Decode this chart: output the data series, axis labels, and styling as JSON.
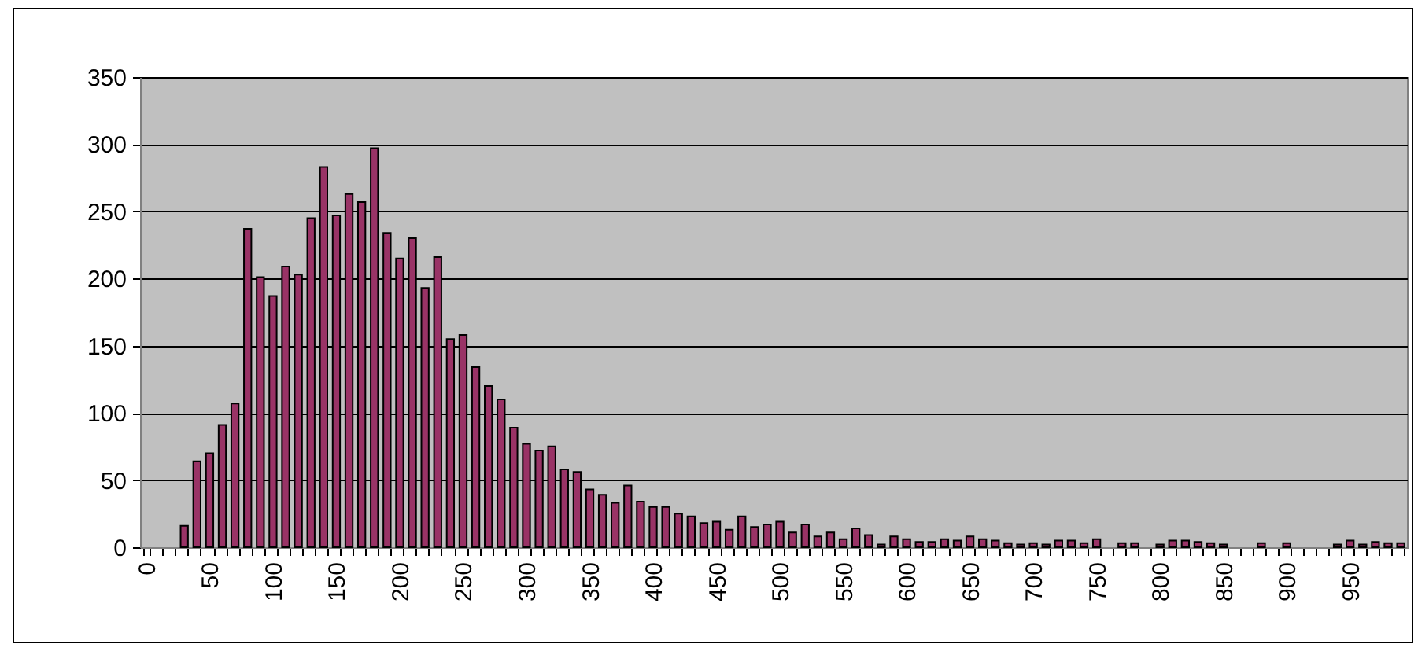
{
  "chart_data": {
    "type": "bar",
    "categories": [
      "0",
      null,
      null,
      null,
      null,
      "50",
      null,
      null,
      null,
      null,
      "100",
      null,
      null,
      null,
      null,
      "150",
      null,
      null,
      null,
      null,
      "200",
      null,
      null,
      null,
      null,
      "250",
      null,
      null,
      null,
      null,
      "300",
      null,
      null,
      null,
      null,
      "350",
      null,
      null,
      null,
      null,
      "400",
      null,
      null,
      null,
      null,
      "450",
      null,
      null,
      null,
      null,
      "500",
      null,
      null,
      null,
      null,
      "550",
      null,
      null,
      null,
      null,
      "600",
      null,
      null,
      null,
      null,
      "650",
      null,
      null,
      null,
      null,
      "700",
      null,
      null,
      null,
      null,
      "750",
      null,
      null,
      null,
      null,
      "800",
      null,
      null,
      null,
      null,
      "850",
      null,
      null,
      null,
      null,
      "900",
      null,
      null,
      null,
      null,
      "950",
      null,
      null,
      null,
      null
    ],
    "values": [
      0,
      0,
      0,
      16,
      64,
      70,
      91,
      107,
      237,
      201,
      187,
      209,
      203,
      245,
      283,
      247,
      263,
      257,
      297,
      234,
      215,
      230,
      193,
      216,
      155,
      158,
      134,
      120,
      110,
      89,
      77,
      72,
      75,
      58,
      56,
      43,
      39,
      33,
      46,
      34,
      30,
      30,
      25,
      23,
      18,
      19,
      13,
      23,
      15,
      17,
      19,
      11,
      17,
      8,
      11,
      6,
      14,
      9,
      2,
      8,
      6,
      4,
      4,
      6,
      5,
      8,
      6,
      5,
      3,
      2,
      3,
      2,
      5,
      5,
      3,
      6,
      0,
      3,
      3,
      0,
      2,
      5,
      5,
      4,
      3,
      2,
      0,
      0,
      3,
      0,
      3,
      0,
      0,
      0,
      2,
      5,
      2,
      4,
      3,
      3
    ],
    "color": "#993366",
    "ylim": [
      0,
      350
    ],
    "yticks": [
      0,
      50,
      100,
      150,
      200,
      250,
      300,
      350
    ],
    "grid": "y"
  }
}
